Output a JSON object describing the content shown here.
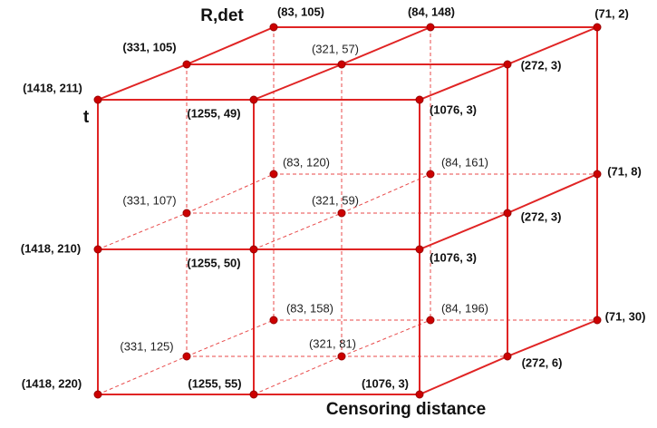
{
  "axes": {
    "vertical_top": "R,det",
    "left": "t",
    "bottom": "Censoring distance"
  },
  "points": [
    {
      "label": "(1418, 211)"
    },
    {
      "label": "(1255, 49)"
    },
    {
      "label": "(1076, 3)"
    },
    {
      "label": "(1418, 210)"
    },
    {
      "label": "(1255, 50)"
    },
    {
      "label": "(1076, 3)"
    },
    {
      "label": "(1418, 220)"
    },
    {
      "label": "(1255, 55)"
    },
    {
      "label": "(1076, 3)"
    },
    {
      "label": "(331, 105)"
    },
    {
      "label": "(321, 57)"
    },
    {
      "label": "(272, 3)"
    },
    {
      "label": "(331, 107)"
    },
    {
      "label": "(321, 59)"
    },
    {
      "label": "(272, 3)"
    },
    {
      "label": "(331, 125)"
    },
    {
      "label": "(321, 81)"
    },
    {
      "label": "(272, 6)"
    },
    {
      "label": "(83, 105)"
    },
    {
      "label": "(84, 148)"
    },
    {
      "label": "(71, 2)"
    },
    {
      "label": "(83, 120)"
    },
    {
      "label": "(84, 161)"
    },
    {
      "label": "(71, 8)"
    },
    {
      "label": "(83, 158)"
    },
    {
      "label": "(84, 196)"
    },
    {
      "label": "(71, 30)"
    }
  ]
}
